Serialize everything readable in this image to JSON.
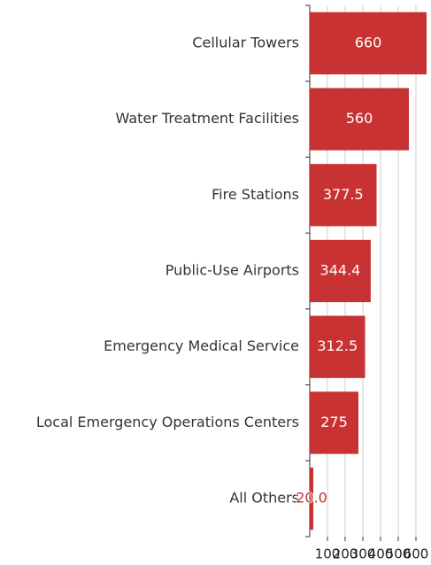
{
  "chart_data": {
    "type": "bar",
    "orientation": "horizontal",
    "categories": [
      "Cellular Towers",
      "Water Treatment Facilities",
      "Fire Stations",
      "Public-Use Airports",
      "Emergency Medical Service",
      "Local Emergency Operations Centers",
      "All Others"
    ],
    "values": [
      660,
      560,
      377.5,
      344.4,
      312.5,
      275,
      20
    ],
    "value_labels": [
      "660",
      "560",
      "377.5",
      "344.4",
      "312.5",
      "275",
      "20.0"
    ],
    "color": "#c83232",
    "xlim": [
      0,
      660
    ],
    "xticks": [
      100,
      200,
      300,
      400,
      500,
      600
    ],
    "grid": true
  }
}
